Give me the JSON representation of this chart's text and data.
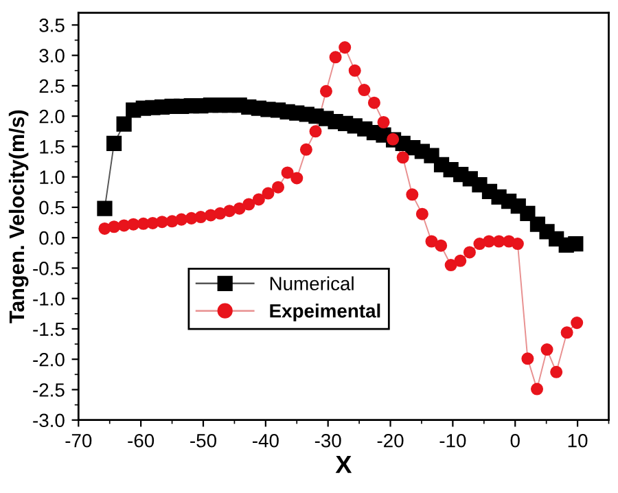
{
  "chart_data": {
    "type": "line",
    "xlabel": "X",
    "ylabel": "Tangen. Velocity(m/s)",
    "xlim": [
      -70,
      15
    ],
    "xticks": [
      -70,
      -60,
      -50,
      -40,
      -30,
      -20,
      -10,
      0,
      10
    ],
    "ylim": [
      -3.0,
      3.7
    ],
    "yticks": [
      {
        "value": -3.0,
        "label": "-3.0"
      },
      {
        "value": -2.5,
        "label": "-2.5"
      },
      {
        "value": -2.0,
        "label": "-2.0"
      },
      {
        "value": -1.5,
        "label": "-1.5"
      },
      {
        "value": -1.0,
        "label": "-1.0"
      },
      {
        "value": -0.5,
        "label": "-0.5"
      },
      {
        "value": 0.0,
        "label": "0.0"
      },
      {
        "value": 0.5,
        "label": "0.5"
      },
      {
        "value": 1.0,
        "label": "1.0"
      },
      {
        "value": 1.5,
        "label": "1.5"
      },
      {
        "value": 2.0,
        "label": "2.0"
      },
      {
        "value": 2.5,
        "label": "2.5"
      },
      {
        "value": 3.0,
        "label": "3.0"
      },
      {
        "value": 3.5,
        "label": "3.5"
      }
    ],
    "grid": false,
    "legend": "lower left",
    "series": [
      {
        "name": "Numerical",
        "color": "#000000",
        "marker": "square",
        "x": [
          -65.8,
          -64.3,
          -62.7,
          -61.2,
          -59.6,
          -58.1,
          -56.6,
          -55.0,
          -53.5,
          -51.9,
          -50.4,
          -48.8,
          -47.3,
          -45.8,
          -44.2,
          -42.7,
          -41.1,
          -39.6,
          -38.0,
          -36.5,
          -35.0,
          -33.4,
          -31.9,
          -30.3,
          -28.8,
          -27.2,
          -25.7,
          -24.1,
          -22.6,
          -21.1,
          -19.5,
          -18.0,
          -16.4,
          -14.9,
          -13.4,
          -11.8,
          -10.3,
          -8.7,
          -7.2,
          -5.7,
          -4.1,
          -2.6,
          -1.0,
          0.5,
          2.0,
          3.6,
          5.1,
          6.6,
          8.2,
          9.7
        ],
        "values": [
          0.48,
          1.55,
          1.87,
          2.1,
          2.13,
          2.14,
          2.15,
          2.16,
          2.16,
          2.17,
          2.17,
          2.18,
          2.18,
          2.18,
          2.18,
          2.15,
          2.13,
          2.11,
          2.1,
          2.07,
          2.05,
          2.03,
          2.0,
          1.96,
          1.91,
          1.88,
          1.84,
          1.79,
          1.73,
          1.69,
          1.61,
          1.55,
          1.48,
          1.42,
          1.35,
          1.2,
          1.12,
          1.04,
          0.97,
          0.87,
          0.76,
          0.67,
          0.6,
          0.52,
          0.4,
          0.22,
          0.1,
          -0.02,
          -0.12,
          -0.1
        ]
      },
      {
        "name": "Expeimental",
        "color": "#e8141c",
        "marker": "circle",
        "x": [
          -65.8,
          -64.3,
          -62.7,
          -61.2,
          -59.6,
          -58.1,
          -56.6,
          -55.0,
          -53.5,
          -51.9,
          -50.4,
          -48.8,
          -47.3,
          -45.8,
          -44.2,
          -42.7,
          -41.1,
          -39.6,
          -38.0,
          -36.5,
          -35.0,
          -33.5,
          -32.0,
          -30.3,
          -28.8,
          -27.3,
          -25.7,
          -24.2,
          -22.6,
          -21.1,
          -19.6,
          -18.0,
          -16.5,
          -14.9,
          -13.4,
          -11.9,
          -10.3,
          -8.8,
          -7.3,
          -5.7,
          -4.2,
          -2.6,
          -1.0,
          0.4,
          2.0,
          3.5,
          5.1,
          6.6,
          8.3,
          9.9
        ],
        "values": [
          0.15,
          0.18,
          0.2,
          0.22,
          0.23,
          0.24,
          0.26,
          0.27,
          0.3,
          0.32,
          0.34,
          0.37,
          0.4,
          0.44,
          0.48,
          0.55,
          0.63,
          0.73,
          0.83,
          1.07,
          0.98,
          1.45,
          1.75,
          2.41,
          2.97,
          3.13,
          2.75,
          2.43,
          2.22,
          1.9,
          1.62,
          1.32,
          0.71,
          0.39,
          -0.06,
          -0.13,
          -0.45,
          -0.38,
          -0.24,
          -0.1,
          -0.06,
          -0.06,
          -0.06,
          -0.1,
          -1.99,
          -2.49,
          -1.84,
          -2.21,
          -1.56,
          -1.4
        ]
      }
    ]
  }
}
